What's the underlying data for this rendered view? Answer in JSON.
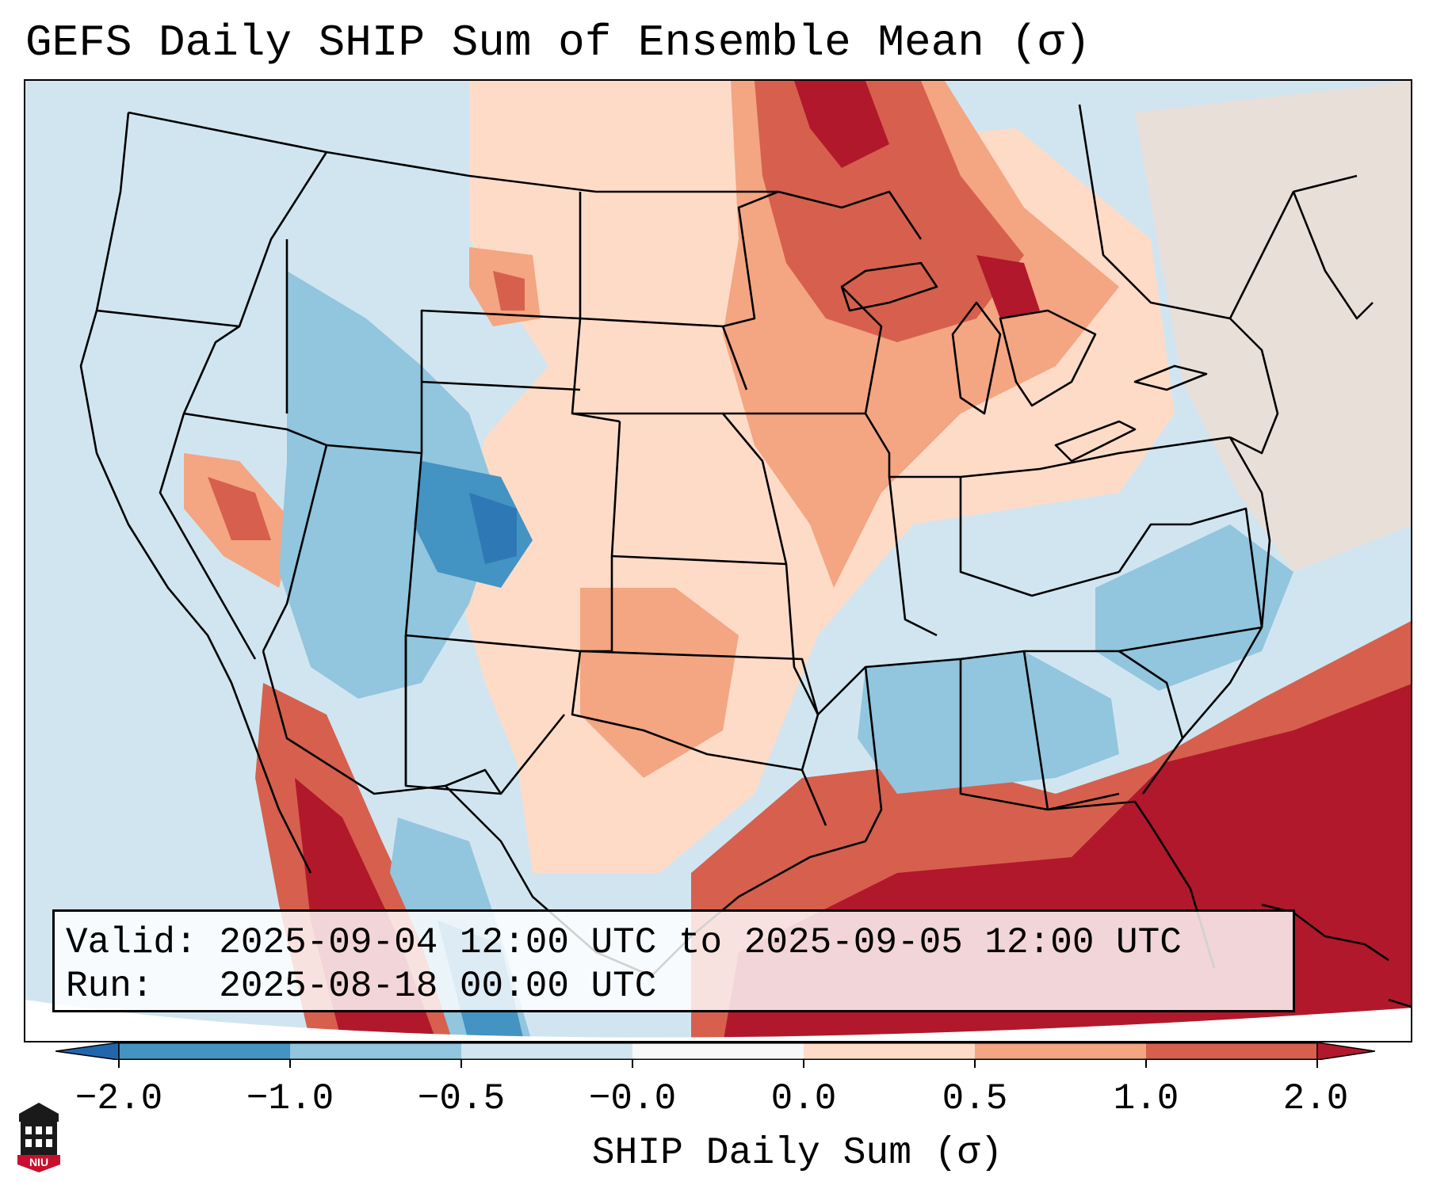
{
  "title": "GEFS Daily SHIP Sum of Ensemble Mean (σ)",
  "info": {
    "valid_label": "Valid:",
    "valid_value": "2025-09-04 12:00 UTC to 2025-09-05 12:00 UTC",
    "run_label": "Run:",
    "run_value": "2025-08-18 00:00 UTC"
  },
  "colorbar": {
    "label": "SHIP Daily Sum (σ)",
    "ticks": [
      "−2.0",
      "−1.0",
      "−0.5",
      "−0.0",
      "0.0",
      "0.5",
      "1.0",
      "2.0"
    ],
    "bins": [
      {
        "range": "< -2.0",
        "color": "#2166ac"
      },
      {
        "range": "-2.0 to -1.0",
        "color": "#4393c3"
      },
      {
        "range": "-1.0 to -0.5",
        "color": "#92c5de"
      },
      {
        "range": "-0.5 to -0.0",
        "color": "#d1e5f0"
      },
      {
        "range": "-0.0 to 0.0",
        "color": "#f7f7f7"
      },
      {
        "range": "0.0 to 0.5",
        "color": "#fddbc7"
      },
      {
        "range": "0.5 to 1.0",
        "color": "#f4a582"
      },
      {
        "range": "1.0 to 2.0",
        "color": "#d6604d"
      },
      {
        "range": "> 2.0",
        "color": "#b2182b"
      }
    ]
  },
  "logo": {
    "text": "NIU",
    "icon": "university-tower-icon"
  },
  "map": {
    "region": "Contiguous United States",
    "projection": "Lambert Conformal"
  }
}
